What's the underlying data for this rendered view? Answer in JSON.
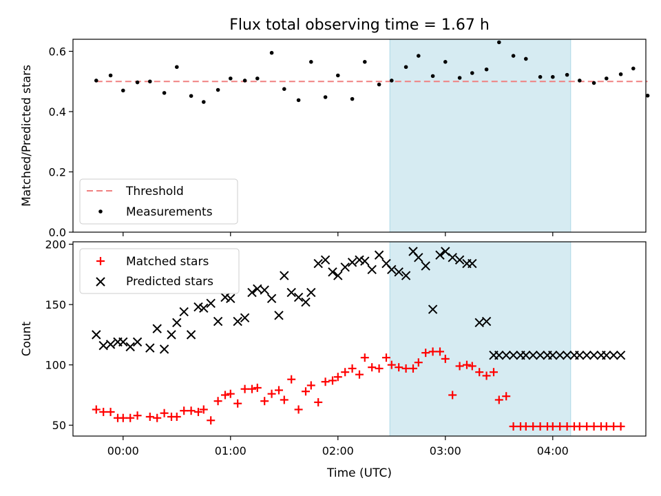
{
  "chart_data": [
    {
      "type": "scatter",
      "title": "Flux total observing time = 1.67 h",
      "xlabel": "",
      "ylabel": "Matched/Predicted stars",
      "ylim": [
        0.0,
        0.64
      ],
      "y_ticks": [
        "0.0",
        "0.2",
        "0.4",
        "0.6"
      ],
      "threshold": {
        "name": "Threshold",
        "value": 0.5,
        "color": "#f08080"
      },
      "highlight_range": [
        "02:29",
        "04:10"
      ],
      "highlight_color": "#add8e6",
      "legend_placement": "lower-left",
      "series": [
        {
          "name": "Measurements",
          "color": "#000000",
          "marker": "dot",
          "x": [
            "23:45",
            "23:53",
            "00:00",
            "00:08",
            "00:15",
            "00:23",
            "00:30",
            "00:38",
            "00:45",
            "00:53",
            "01:00",
            "01:08",
            "01:15",
            "01:23",
            "01:30",
            "01:38",
            "01:45",
            "01:53",
            "02:00",
            "02:08",
            "02:15",
            "02:23",
            "02:30",
            "02:38",
            "02:45",
            "02:53",
            "03:00",
            "03:08",
            "03:15",
            "03:23",
            "03:30",
            "03:38",
            "03:45",
            "03:53",
            "04:00",
            "04:08",
            "04:15",
            "04:23",
            "04:30",
            "04:38",
            "04:45",
            "04:53"
          ],
          "y": [
            0.503,
            0.52,
            0.47,
            0.497,
            0.5,
            0.462,
            0.548,
            0.452,
            0.432,
            0.472,
            0.51,
            0.503,
            0.51,
            0.595,
            0.475,
            0.438,
            0.565,
            0.448,
            0.52,
            0.442,
            0.565,
            0.49,
            0.503,
            0.548,
            0.585,
            0.518,
            0.565,
            0.512,
            0.528,
            0.54,
            0.63,
            0.585,
            0.575,
            0.515,
            0.515,
            0.522,
            0.503,
            0.495,
            0.51,
            0.524,
            0.543,
            0.453
          ]
        }
      ]
    },
    {
      "type": "scatter",
      "title": "",
      "xlabel": "Time (UTC)",
      "ylabel": "Count",
      "ylim": [
        41,
        202
      ],
      "y_ticks": [
        "50",
        "100",
        "150",
        "200"
      ],
      "x_ticks": [
        "00:00",
        "01:00",
        "02:00",
        "03:00",
        "04:00"
      ],
      "highlight_range": [
        "02:29",
        "04:10"
      ],
      "highlight_color": "#add8e6",
      "legend_placement": "top-left",
      "series": [
        {
          "name": "Matched stars",
          "color": "#ff0000",
          "marker": "plus",
          "x": [
            "23:45",
            "23:49",
            "23:53",
            "23:57",
            "00:00",
            "00:04",
            "00:08",
            "00:15",
            "00:19",
            "00:23",
            "00:27",
            "00:30",
            "00:34",
            "00:38",
            "00:42",
            "00:45",
            "00:49",
            "00:53",
            "00:57",
            "01:00",
            "01:04",
            "01:08",
            "01:12",
            "01:15",
            "01:19",
            "01:23",
            "01:27",
            "01:30",
            "01:34",
            "01:38",
            "01:42",
            "01:45",
            "01:49",
            "01:53",
            "01:57",
            "02:00",
            "02:04",
            "02:08",
            "02:12",
            "02:15",
            "02:19",
            "02:23",
            "02:27",
            "02:30",
            "02:34",
            "02:38",
            "02:42",
            "02:45",
            "02:49",
            "02:53",
            "02:57",
            "03:00",
            "03:04",
            "03:08",
            "03:12",
            "03:15",
            "03:19",
            "03:23",
            "03:27",
            "03:30",
            "03:34",
            "03:38",
            "03:42",
            "03:45",
            "03:49",
            "03:53",
            "03:57",
            "04:00",
            "04:04",
            "04:08",
            "04:12",
            "04:15",
            "04:19",
            "04:23",
            "04:27",
            "04:30",
            "04:34",
            "04:38"
          ],
          "y": [
            63,
            61,
            61,
            56,
            56,
            56,
            58,
            57,
            56,
            60,
            57,
            57,
            62,
            62,
            61,
            63,
            54,
            70,
            75,
            76,
            68,
            80,
            80,
            81,
            70,
            76,
            79,
            71,
            88,
            63,
            78,
            83,
            69,
            86,
            87,
            90,
            94,
            97,
            92,
            106,
            98,
            97,
            106,
            100,
            98,
            97,
            97,
            102,
            110,
            111,
            111,
            105,
            75,
            99,
            100,
            99,
            94,
            91,
            94,
            71,
            74,
            49,
            49,
            49,
            49,
            49,
            49,
            49,
            49,
            49,
            49,
            49,
            49,
            49,
            49,
            49,
            49,
            49
          ]
        },
        {
          "name": "Predicted stars",
          "color": "#000000",
          "marker": "x",
          "x": [
            "23:45",
            "23:49",
            "23:53",
            "23:57",
            "00:00",
            "00:04",
            "00:08",
            "00:15",
            "00:19",
            "00:23",
            "00:27",
            "00:30",
            "00:34",
            "00:38",
            "00:42",
            "00:45",
            "00:49",
            "00:53",
            "00:57",
            "01:00",
            "01:04",
            "01:08",
            "01:12",
            "01:15",
            "01:19",
            "01:23",
            "01:27",
            "01:30",
            "01:34",
            "01:38",
            "01:42",
            "01:45",
            "01:49",
            "01:53",
            "01:57",
            "02:00",
            "02:04",
            "02:08",
            "02:12",
            "02:15",
            "02:19",
            "02:23",
            "02:27",
            "02:30",
            "02:34",
            "02:38",
            "02:42",
            "02:45",
            "02:49",
            "02:53",
            "02:57",
            "03:00",
            "03:04",
            "03:08",
            "03:12",
            "03:15",
            "03:19",
            "03:23",
            "03:27",
            "03:30",
            "03:34",
            "03:38",
            "03:42",
            "03:45",
            "03:49",
            "03:53",
            "03:57",
            "04:00",
            "04:04",
            "04:08",
            "04:12",
            "04:15",
            "04:19",
            "04:23",
            "04:27",
            "04:30",
            "04:34",
            "04:38"
          ],
          "y": [
            125,
            116,
            117,
            119,
            119,
            115,
            119,
            114,
            130,
            113,
            125,
            135,
            144,
            125,
            148,
            147,
            151,
            136,
            156,
            155,
            136,
            139,
            160,
            163,
            162,
            155,
            141,
            174,
            160,
            156,
            152,
            160,
            184,
            187,
            177,
            174,
            181,
            185,
            187,
            186,
            179,
            191,
            184,
            179,
            177,
            174,
            194,
            189,
            182,
            146,
            191,
            194,
            189,
            187,
            184,
            184,
            135,
            136,
            108,
            108,
            108,
            108,
            108,
            108,
            108,
            108,
            108,
            108,
            108,
            108,
            108,
            108,
            108,
            108,
            108,
            108,
            108,
            108
          ]
        }
      ]
    }
  ]
}
